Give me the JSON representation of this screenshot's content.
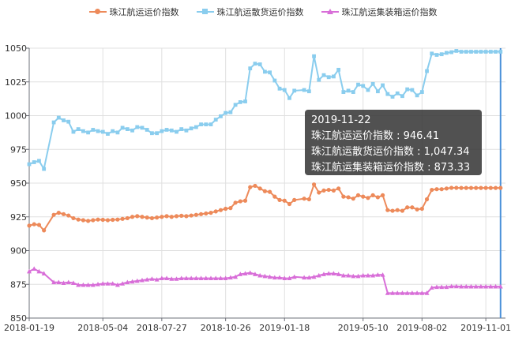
{
  "legend": {
    "items": [
      {
        "label": "珠江航运运价指数",
        "color": "#ED8A5A",
        "marker": "circle-icon"
      },
      {
        "label": "珠江航运散货运价指数",
        "color": "#8ACDEE",
        "marker": "square-icon"
      },
      {
        "label": "珠江航运集装箱运价指数",
        "color": "#D86ED8",
        "marker": "triangle-icon"
      }
    ]
  },
  "tooltip": {
    "date": "2019-11-22",
    "line1": "珠江航运运价指数 : 946.41",
    "line2": "珠江航运散货运价指数 : 1,047.34",
    "line3": "珠江航运集装箱运价指数 : 873.33"
  },
  "chart_data": {
    "type": "line",
    "title": "",
    "xlabel": "",
    "ylabel": "",
    "ylim": [
      850,
      1050
    ],
    "yticks": [
      850,
      875,
      900,
      925,
      950,
      975,
      1000,
      1025,
      1050
    ],
    "xlim": [
      "2018-01-19",
      "2019-11-29"
    ],
    "xticks": [
      "2018-01-19",
      "2018-05-04",
      "2018-07-27",
      "2018-10-26",
      "2019-01-18",
      "2019-05-10",
      "2019-08-02",
      "2019-11-01"
    ],
    "grid": true,
    "legend_position": "top-center",
    "highlight_x": "2019-11-22",
    "colors": {
      "axis": "#6E7079",
      "grid": "#E0E0E0",
      "highlight_axis": "#4A90D9"
    },
    "x": [
      "2018-01-19",
      "2018-01-26",
      "2018-02-02",
      "2018-02-09",
      "2018-02-23",
      "2018-03-02",
      "2018-03-09",
      "2018-03-16",
      "2018-03-23",
      "2018-03-30",
      "2018-04-06",
      "2018-04-13",
      "2018-04-20",
      "2018-04-27",
      "2018-05-04",
      "2018-05-11",
      "2018-05-18",
      "2018-05-25",
      "2018-06-01",
      "2018-06-08",
      "2018-06-15",
      "2018-06-22",
      "2018-06-29",
      "2018-07-06",
      "2018-07-13",
      "2018-07-20",
      "2018-07-27",
      "2018-08-03",
      "2018-08-10",
      "2018-08-17",
      "2018-08-24",
      "2018-08-31",
      "2018-09-07",
      "2018-09-14",
      "2018-09-21",
      "2018-09-28",
      "2018-10-05",
      "2018-10-12",
      "2018-10-19",
      "2018-10-26",
      "2018-11-02",
      "2018-11-09",
      "2018-11-16",
      "2018-11-23",
      "2018-11-30",
      "2018-12-07",
      "2018-12-14",
      "2018-12-21",
      "2018-12-28",
      "2019-01-04",
      "2019-01-11",
      "2019-01-18",
      "2019-01-25",
      "2019-02-01",
      "2019-02-15",
      "2019-02-22",
      "2019-03-01",
      "2019-03-08",
      "2019-03-15",
      "2019-03-22",
      "2019-03-29",
      "2019-04-05",
      "2019-04-12",
      "2019-04-19",
      "2019-04-26",
      "2019-05-03",
      "2019-05-10",
      "2019-05-17",
      "2019-05-24",
      "2019-05-31",
      "2019-06-07",
      "2019-06-14",
      "2019-06-21",
      "2019-06-28",
      "2019-07-05",
      "2019-07-12",
      "2019-07-19",
      "2019-07-26",
      "2019-08-02",
      "2019-08-09",
      "2019-08-16",
      "2019-08-23",
      "2019-08-30",
      "2019-09-06",
      "2019-09-13",
      "2019-09-20",
      "2019-09-27",
      "2019-10-04",
      "2019-10-11",
      "2019-10-18",
      "2019-10-25",
      "2019-11-01",
      "2019-11-08",
      "2019-11-15",
      "2019-11-22"
    ],
    "series": [
      {
        "name": "珠江航运运价指数",
        "color": "#ED8A5A",
        "marker": "circle",
        "values": [
          918.5,
          919.5,
          919.0,
          915.0,
          926.5,
          928.0,
          927.0,
          926.0,
          924.0,
          923.0,
          922.5,
          922.0,
          922.5,
          923.0,
          922.8,
          922.5,
          922.8,
          923.0,
          923.5,
          924.0,
          925.0,
          925.5,
          925.0,
          924.5,
          924.0,
          924.5,
          925.0,
          925.5,
          925.0,
          925.5,
          925.8,
          925.5,
          926.0,
          926.5,
          927.0,
          927.5,
          928.0,
          929.0,
          930.0,
          931.0,
          931.5,
          935.5,
          936.5,
          937.0,
          947.0,
          948.0,
          946.0,
          944.0,
          943.5,
          940.0,
          937.5,
          937.0,
          934.5,
          937.5,
          938.5,
          938.0,
          949.0,
          943.0,
          944.5,
          945.0,
          944.5,
          946.0,
          940.0,
          939.5,
          938.5,
          941.0,
          940.0,
          939.0,
          941.0,
          939.5,
          941.0,
          930.0,
          929.5,
          930.0,
          929.5,
          932.0,
          932.0,
          930.5,
          931.0,
          938.0,
          945.0,
          945.5,
          945.5,
          946.0,
          946.5,
          946.5,
          946.41,
          946.41,
          946.41,
          946.41,
          946.41,
          946.41,
          946.41,
          946.41,
          946.41
        ]
      },
      {
        "name": "珠江航运散货运价指数",
        "color": "#8ACDEE",
        "marker": "square",
        "values": [
          964.0,
          965.5,
          966.5,
          960.5,
          995.0,
          998.5,
          996.5,
          995.5,
          988.0,
          990.0,
          988.5,
          987.5,
          989.5,
          988.5,
          988.0,
          986.5,
          988.5,
          987.5,
          991.0,
          990.0,
          989.0,
          991.5,
          991.0,
          989.5,
          987.0,
          987.0,
          988.5,
          989.5,
          989.0,
          988.0,
          990.0,
          989.0,
          990.5,
          991.5,
          993.5,
          993.5,
          993.5,
          997.0,
          999.5,
          1002.0,
          1002.5,
          1008.0,
          1010.0,
          1010.5,
          1035.0,
          1038.5,
          1038.0,
          1032.5,
          1032.0,
          1026.0,
          1020.0,
          1019.0,
          1013.0,
          1018.5,
          1019.0,
          1018.0,
          1044.0,
          1026.5,
          1030.0,
          1028.5,
          1029.0,
          1034.0,
          1017.5,
          1018.5,
          1017.5,
          1023.0,
          1022.0,
          1019.0,
          1023.5,
          1018.0,
          1022.5,
          1016.0,
          1014.0,
          1016.5,
          1014.5,
          1019.5,
          1019.0,
          1015.0,
          1017.5,
          1033.0,
          1046.0,
          1045.0,
          1045.5,
          1046.5,
          1047.0,
          1048.0,
          1047.34,
          1047.34,
          1047.34,
          1047.34,
          1047.34,
          1047.34,
          1047.34,
          1047.34,
          1047.34
        ]
      },
      {
        "name": "珠江航运集装箱运价指数",
        "color": "#D86ED8",
        "marker": "triangle",
        "values": [
          884.5,
          886.5,
          884.5,
          883.0,
          876.5,
          876.5,
          876.0,
          876.5,
          876.0,
          874.5,
          874.5,
          874.5,
          874.5,
          875.0,
          875.5,
          875.5,
          875.5,
          874.5,
          875.5,
          876.5,
          877.0,
          877.5,
          878.0,
          878.5,
          879.0,
          878.5,
          879.5,
          879.5,
          879.0,
          879.0,
          879.5,
          879.5,
          879.5,
          879.5,
          879.5,
          879.5,
          879.5,
          879.5,
          879.5,
          879.5,
          880.0,
          880.5,
          882.5,
          883.0,
          883.5,
          882.5,
          881.5,
          881.0,
          880.5,
          880.0,
          880.0,
          879.5,
          879.5,
          880.5,
          880.0,
          880.0,
          880.5,
          881.5,
          882.5,
          883.0,
          883.0,
          882.5,
          881.5,
          881.5,
          881.0,
          881.0,
          881.5,
          881.5,
          881.5,
          882.0,
          882.0,
          868.5,
          868.5,
          868.5,
          868.5,
          868.5,
          868.5,
          868.5,
          868.5,
          868.5,
          872.5,
          873.0,
          873.0,
          873.0,
          873.5,
          873.5,
          873.33,
          873.33,
          873.33,
          873.33,
          873.33,
          873.33,
          873.33,
          873.33,
          873.33
        ]
      }
    ]
  }
}
